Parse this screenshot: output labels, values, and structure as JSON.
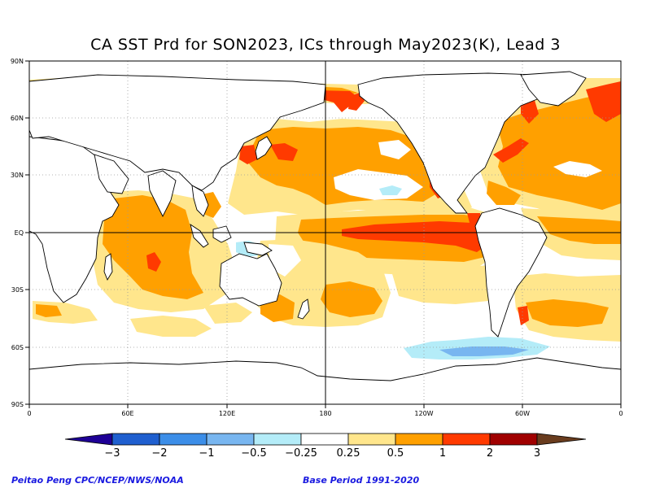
{
  "title": "CA SST Prd for SON2023, ICs through May2023(K), Lead 3",
  "map": {
    "projection": "equirectangular",
    "lon_ticks": [
      "0",
      "60E",
      "120E",
      "180",
      "120W",
      "60W",
      "0"
    ],
    "lat_ticks": [
      "90N",
      "60N",
      "30N",
      "EQ",
      "30S",
      "60S",
      "90S"
    ],
    "graticule": "dotted",
    "crosshair": [
      "EQ",
      "180"
    ]
  },
  "legend": {
    "labels": [
      "−3",
      "−2",
      "−1",
      "−0.5",
      "−0.25",
      "0.25",
      "0.5",
      "1",
      "2",
      "3"
    ],
    "colors": [
      "#1e0096",
      "#1f5fcf",
      "#3c8ee8",
      "#78b6f0",
      "#b4ecf8",
      "#ffffff",
      "#ffe68c",
      "#ffa000",
      "#ff3a00",
      "#a00000",
      "#693c1e"
    ]
  },
  "colors": {
    "weak_warm": "#ffe68c",
    "moderate_warm": "#ffa000",
    "strong_warm": "#ff3a00",
    "weak_cool": "#b4ecf8",
    "moderate_cool": "#78b6f0",
    "land_outline": "#000000"
  },
  "credits": {
    "left": "Peitao Peng CPC/NCEP/NWS/NOAA",
    "right": "Base Period 1991-2020"
  }
}
